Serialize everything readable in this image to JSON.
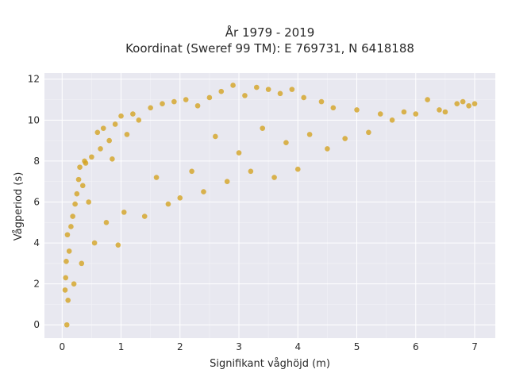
{
  "chart_data": {
    "type": "scatter",
    "title_lines": [
      "År 1979 - 2019",
      "Koordinat (Sweref 99 TM): E 769731, N 6418188"
    ],
    "xlabel": "Signifikant våghöjd (m)",
    "ylabel": "Vågperiod (s)",
    "xlim": [
      -0.3,
      7.35
    ],
    "ylim": [
      -0.65,
      12.3
    ],
    "x_ticks": [
      0,
      1,
      2,
      3,
      4,
      5,
      6,
      7
    ],
    "y_ticks": [
      0,
      2,
      4,
      6,
      8,
      10,
      12
    ],
    "grid": true,
    "point_color": "#D4A21E",
    "plot_background": "#E8E8F0",
    "series": [
      {
        "points": [
          [
            0.08,
            0.0
          ],
          [
            0.05,
            1.7
          ],
          [
            0.06,
            2.3
          ],
          [
            0.07,
            3.1
          ],
          [
            0.09,
            4.4
          ],
          [
            0.1,
            1.2
          ],
          [
            0.12,
            3.6
          ],
          [
            0.15,
            4.8
          ],
          [
            0.18,
            5.3
          ],
          [
            0.2,
            2.0
          ],
          [
            0.22,
            5.9
          ],
          [
            0.25,
            6.4
          ],
          [
            0.28,
            7.1
          ],
          [
            0.3,
            7.7
          ],
          [
            0.33,
            3.0
          ],
          [
            0.35,
            6.8
          ],
          [
            0.38,
            8.0
          ],
          [
            0.4,
            7.9
          ],
          [
            0.45,
            6.0
          ],
          [
            0.5,
            8.2
          ],
          [
            0.55,
            4.0
          ],
          [
            0.6,
            9.4
          ],
          [
            0.65,
            8.6
          ],
          [
            0.7,
            9.6
          ],
          [
            0.75,
            5.0
          ],
          [
            0.8,
            9.0
          ],
          [
            0.85,
            8.1
          ],
          [
            0.9,
            9.8
          ],
          [
            0.95,
            3.9
          ],
          [
            1.0,
            10.2
          ],
          [
            1.05,
            5.5
          ],
          [
            1.1,
            9.3
          ],
          [
            1.2,
            10.3
          ],
          [
            1.3,
            10.0
          ],
          [
            1.4,
            5.3
          ],
          [
            1.5,
            10.6
          ],
          [
            1.6,
            7.2
          ],
          [
            1.7,
            10.8
          ],
          [
            1.8,
            5.9
          ],
          [
            1.9,
            10.9
          ],
          [
            2.0,
            6.2
          ],
          [
            2.1,
            11.0
          ],
          [
            2.2,
            7.5
          ],
          [
            2.3,
            10.7
          ],
          [
            2.4,
            6.5
          ],
          [
            2.5,
            11.1
          ],
          [
            2.6,
            9.2
          ],
          [
            2.7,
            11.4
          ],
          [
            2.8,
            7.0
          ],
          [
            2.9,
            11.7
          ],
          [
            3.0,
            8.4
          ],
          [
            3.1,
            11.2
          ],
          [
            3.2,
            7.5
          ],
          [
            3.3,
            11.6
          ],
          [
            3.4,
            9.6
          ],
          [
            3.5,
            11.5
          ],
          [
            3.6,
            7.2
          ],
          [
            3.7,
            11.3
          ],
          [
            3.8,
            8.9
          ],
          [
            3.9,
            11.5
          ],
          [
            4.0,
            7.6
          ],
          [
            4.1,
            11.1
          ],
          [
            4.2,
            9.3
          ],
          [
            4.4,
            10.9
          ],
          [
            4.5,
            8.6
          ],
          [
            4.6,
            10.6
          ],
          [
            4.8,
            9.1
          ],
          [
            5.0,
            10.5
          ],
          [
            5.2,
            9.4
          ],
          [
            5.4,
            10.3
          ],
          [
            5.6,
            10.0
          ],
          [
            5.8,
            10.4
          ],
          [
            6.0,
            10.3
          ],
          [
            6.2,
            11.0
          ],
          [
            6.4,
            10.5
          ],
          [
            6.5,
            10.4
          ],
          [
            6.7,
            10.8
          ],
          [
            6.8,
            10.9
          ],
          [
            6.9,
            10.7
          ],
          [
            7.0,
            10.8
          ]
        ]
      }
    ]
  }
}
